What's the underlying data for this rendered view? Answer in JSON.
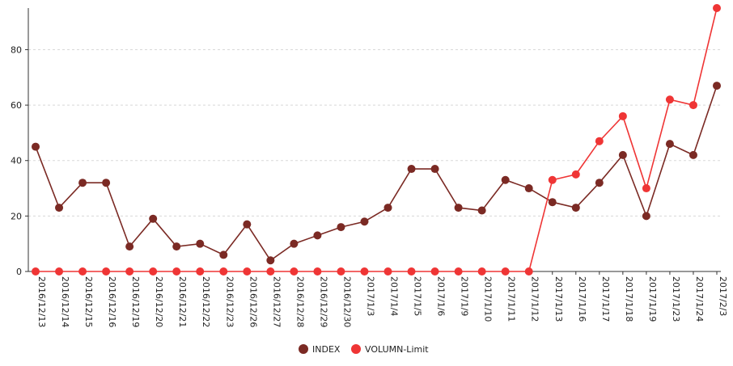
{
  "chart_data": {
    "type": "line",
    "categories": [
      "2016/12/13",
      "2016/12/14",
      "2016/12/15",
      "2016/12/16",
      "2016/12/19",
      "2016/12/20",
      "2016/12/21",
      "2016/12/22",
      "2016/12/23",
      "2016/12/26",
      "2016/12/27",
      "2016/12/28",
      "2016/12/29",
      "2016/12/30",
      "2017/1/3",
      "2017/1/4",
      "2017/1/5",
      "2017/1/6",
      "2017/1/9",
      "2017/1/10",
      "2017/1/11",
      "2017/1/12",
      "2017/1/13",
      "2017/1/16",
      "2017/1/17",
      "2017/1/18",
      "2017/1/19",
      "2017/1/23",
      "2017/1/24",
      "2017/2/3"
    ],
    "series": [
      {
        "name": "INDEX",
        "color": "#7b2a24",
        "values": [
          45,
          23,
          32,
          32,
          9,
          19,
          9,
          10,
          6,
          17,
          4,
          10,
          13,
          16,
          18,
          23,
          37,
          37,
          23,
          22,
          33,
          30,
          25,
          23,
          32,
          42,
          20,
          46,
          42,
          67
        ]
      },
      {
        "name": "VOLUMN-Limit",
        "color": "#ef3535",
        "values": [
          0,
          0,
          0,
          0,
          0,
          0,
          0,
          0,
          0,
          0,
          0,
          0,
          0,
          0,
          0,
          0,
          0,
          0,
          0,
          0,
          0,
          0,
          33,
          35,
          47,
          56,
          30,
          62,
          60,
          95
        ]
      }
    ],
    "title": "",
    "xlabel": "",
    "ylabel": "",
    "ylim": [
      0,
      95
    ],
    "yticks": [
      0,
      20,
      40,
      60,
      80
    ],
    "grid": true,
    "legend": "bottom-center"
  }
}
